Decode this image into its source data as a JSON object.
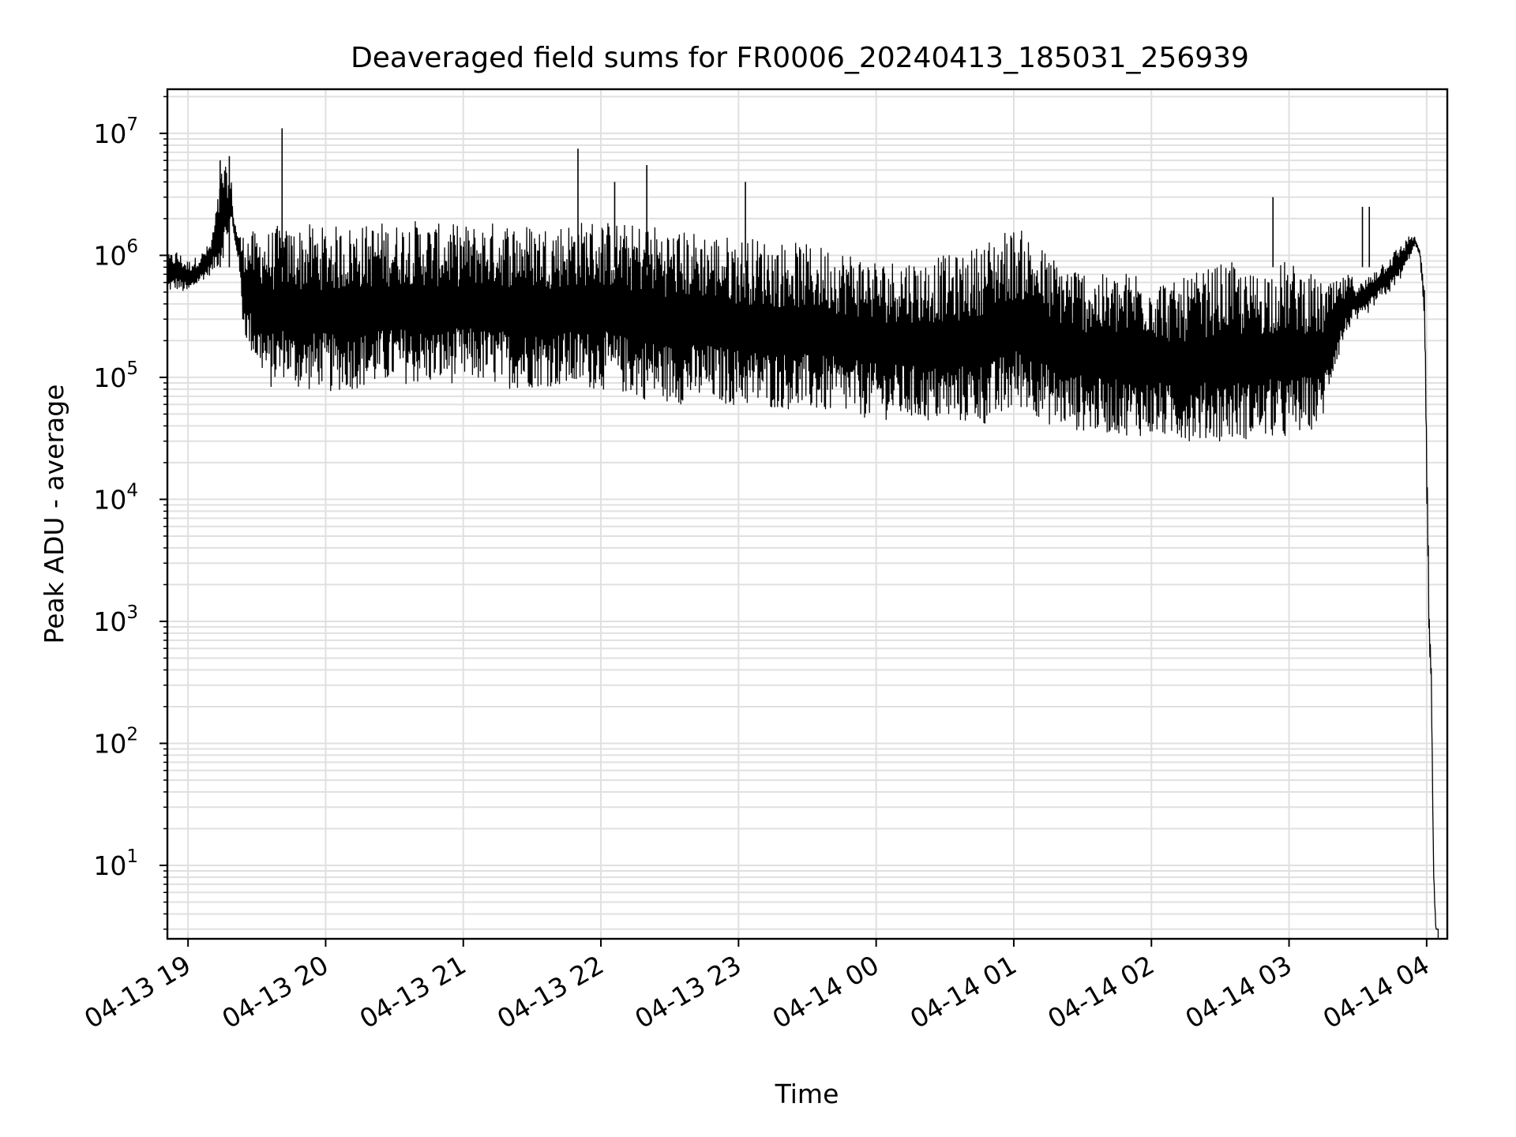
{
  "chart_data": {
    "type": "line",
    "title": "Deaveraged field sums for FR0006_20240413_185031_256939",
    "xlabel": "Time",
    "ylabel": "Peak ADU - average",
    "yscale": "log",
    "ylim": [
      2.5,
      23000000
    ],
    "xlim": [
      "2024-04-13 18:51",
      "2024-04-14 04:09"
    ],
    "grid": "major and minor, light gray",
    "legend": "none",
    "x_ticks": [
      "04-13 19",
      "04-13 20",
      "04-13 21",
      "04-13 22",
      "04-13 23",
      "04-14 00",
      "04-14 01",
      "04-14 02",
      "04-14 03",
      "04-14 04"
    ],
    "x_tick_times": [
      "2024-04-13 19:00",
      "2024-04-13 20:00",
      "2024-04-13 21:00",
      "2024-04-13 22:00",
      "2024-04-13 23:00",
      "2024-04-14 00:00",
      "2024-04-14 01:00",
      "2024-04-14 02:00",
      "2024-04-14 03:00",
      "2024-04-14 04:00"
    ],
    "y_ticks": [
      {
        "base": "10",
        "exp": "1",
        "value": 10
      },
      {
        "base": "10",
        "exp": "2",
        "value": 100
      },
      {
        "base": "10",
        "exp": "3",
        "value": 1000
      },
      {
        "base": "10",
        "exp": "4",
        "value": 10000
      },
      {
        "base": "10",
        "exp": "5",
        "value": 100000
      },
      {
        "base": "10",
        "exp": "6",
        "value": 1000000
      },
      {
        "base": "10",
        "exp": "7",
        "value": 10000000
      }
    ],
    "line_color": "#000000",
    "series": [
      {
        "x": [
          "2024-04-13 18:51",
          "2024-04-13 18:55",
          "2024-04-13 19:00",
          "2024-04-13 19:05",
          "2024-04-13 19:10",
          "2024-04-13 19:13",
          "2024-04-13 19:15",
          "2024-04-13 19:17",
          "2024-04-13 19:19",
          "2024-04-13 19:20",
          "2024-04-13 19:22",
          "2024-04-13 19:24",
          "2024-04-13 19:26",
          "2024-04-13 19:28",
          "2024-04-13 19:30",
          "2024-04-13 19:32",
          "2024-04-13 19:34",
          "2024-04-13 19:36",
          "2024-04-13 19:38",
          "2024-04-13 19:40",
          "2024-04-13 19:42",
          "2024-04-13 19:44",
          "2024-04-13 19:45",
          "2024-04-13 19:47",
          "2024-04-13 19:49",
          "2024-04-13 19:52",
          "2024-04-13 19:55",
          "2024-04-13 19:58",
          "2024-04-13 20:02",
          "2024-04-13 20:07",
          "2024-04-13 20:12",
          "2024-04-13 20:18",
          "2024-04-13 20:24",
          "2024-04-13 20:30",
          "2024-04-13 20:36",
          "2024-04-13 20:42",
          "2024-04-13 20:50",
          "2024-04-13 20:58",
          "2024-04-13 21:06",
          "2024-04-13 21:14",
          "2024-04-13 21:22",
          "2024-04-13 21:30",
          "2024-04-13 21:38",
          "2024-04-13 21:46",
          "2024-04-13 21:48",
          "2024-04-13 21:50",
          "2024-04-13 21:55",
          "2024-04-13 22:05",
          "2024-04-13 22:13",
          "2024-04-13 22:15",
          "2024-04-13 22:20",
          "2024-04-13 22:28",
          "2024-04-13 22:36",
          "2024-04-13 22:44",
          "2024-04-13 22:52",
          "2024-04-13 23:00",
          "2024-04-13 23:08",
          "2024-04-13 23:16",
          "2024-04-13 23:24",
          "2024-04-13 23:32",
          "2024-04-13 23:40",
          "2024-04-13 23:48",
          "2024-04-13 23:56",
          "2024-04-14 00:04",
          "2024-04-14 00:12",
          "2024-04-14 00:20",
          "2024-04-14 00:28",
          "2024-04-14 00:36",
          "2024-04-14 00:44",
          "2024-04-14 00:52",
          "2024-04-14 00:58",
          "2024-04-14 01:04",
          "2024-04-14 01:10",
          "2024-04-14 01:16",
          "2024-04-14 01:22",
          "2024-04-14 01:30",
          "2024-04-14 01:38",
          "2024-04-14 01:46",
          "2024-04-14 01:54",
          "2024-04-14 02:02",
          "2024-04-14 02:10",
          "2024-04-14 02:18",
          "2024-04-14 02:26",
          "2024-04-14 02:34",
          "2024-04-14 02:42",
          "2024-04-14 02:50",
          "2024-04-14 02:58",
          "2024-04-14 03:06",
          "2024-04-14 03:14",
          "2024-04-14 03:20",
          "2024-04-14 03:26",
          "2024-04-14 03:32",
          "2024-04-14 03:38",
          "2024-04-14 03:44",
          "2024-04-14 03:50",
          "2024-04-14 03:53",
          "2024-04-14 03:55",
          "2024-04-14 03:57",
          "2024-04-14 03:59",
          "2024-04-14 04:01",
          "2024-04-14 04:02",
          "2024-04-14 04:03",
          "2024-04-14 04:04",
          "2024-04-14 04:05"
        ],
        "lo": [
          500000,
          520000,
          480000,
          600000,
          700000,
          800000,
          900000,
          1300000,
          1800000,
          1400000,
          900000,
          250000,
          180000,
          150000,
          120000,
          110000,
          90000,
          80000,
          85000,
          90000,
          100000,
          95000,
          85000,
          80000,
          78000,
          76000,
          80000,
          85000,
          75000,
          78000,
          80000,
          82000,
          85000,
          90000,
          88000,
          85000,
          88000,
          90000,
          92000,
          85000,
          80000,
          82000,
          84000,
          80000,
          78000,
          82000,
          80000,
          78000,
          70000,
          68000,
          65000,
          62000,
          60000,
          62000,
          60000,
          58000,
          56000,
          55000,
          54000,
          52000,
          50000,
          48000,
          46000,
          45000,
          44000,
          43000,
          42000,
          42000,
          41000,
          40000,
          50000,
          55000,
          48000,
          40000,
          38000,
          36000,
          35000,
          34000,
          33000,
          32000,
          31000,
          30000,
          30000,
          30000,
          31000,
          32000,
          30000,
          35000,
          40000,
          120000,
          250000,
          300000,
          400000,
          500000,
          700000,
          1000000,
          1200000,
          1000000,
          300000,
          500,
          300,
          8,
          3,
          3
        ],
        "hi": [
          1000000,
          1100000,
          900000,
          1000000,
          1300000,
          3000000,
          6000000,
          5000000,
          4000000,
          2000000,
          1500000,
          1500000,
          1600000,
          1600000,
          1500000,
          1700000,
          1600000,
          1600000,
          1700000,
          1800000,
          1700000,
          1600000,
          1700000,
          1800000,
          1700000,
          1800000,
          1800000,
          1700000,
          1800000,
          1700000,
          1800000,
          1800000,
          1900000,
          1800000,
          2000000,
          1900000,
          1800000,
          1800000,
          1800000,
          1900000,
          1900000,
          1800000,
          1800000,
          1900000,
          2000000,
          1900000,
          2000000,
          1900000,
          1800000,
          1800000,
          1900000,
          1700000,
          1600000,
          1600000,
          1500000,
          1400000,
          1400000,
          1300000,
          1300000,
          1200000,
          1200000,
          1100000,
          1000000,
          900000,
          1000000,
          900000,
          1000000,
          1000000,
          1200000,
          1500000,
          1700000,
          1600000,
          1300000,
          1000000,
          900000,
          800000,
          700000,
          700000,
          800000,
          700000,
          600000,
          700000,
          800000,
          900000,
          700000,
          800000,
          900000,
          800000,
          600000,
          600000,
          700000,
          600000,
          800000,
          1000000,
          1300000,
          1500000,
          1400000,
          1100000,
          600000,
          2000,
          500,
          10,
          3,
          3
        ]
      }
    ],
    "spikes": [
      {
        "x": "2024-04-13 19:14",
        "y": 6000000
      },
      {
        "x": "2024-04-13 19:18",
        "y": 6500000
      },
      {
        "x": "2024-04-13 19:41",
        "y": 11000000
      },
      {
        "x": "2024-04-13 21:50",
        "y": 7500000
      },
      {
        "x": "2024-04-13 22:06",
        "y": 4000000
      },
      {
        "x": "2024-04-13 22:20",
        "y": 5500000
      },
      {
        "x": "2024-04-13 23:03",
        "y": 4000000
      },
      {
        "x": "2024-04-14 02:53",
        "y": 3000000
      },
      {
        "x": "2024-04-14 03:32",
        "y": 2500000
      },
      {
        "x": "2024-04-14 03:35",
        "y": 2500000
      }
    ]
  }
}
